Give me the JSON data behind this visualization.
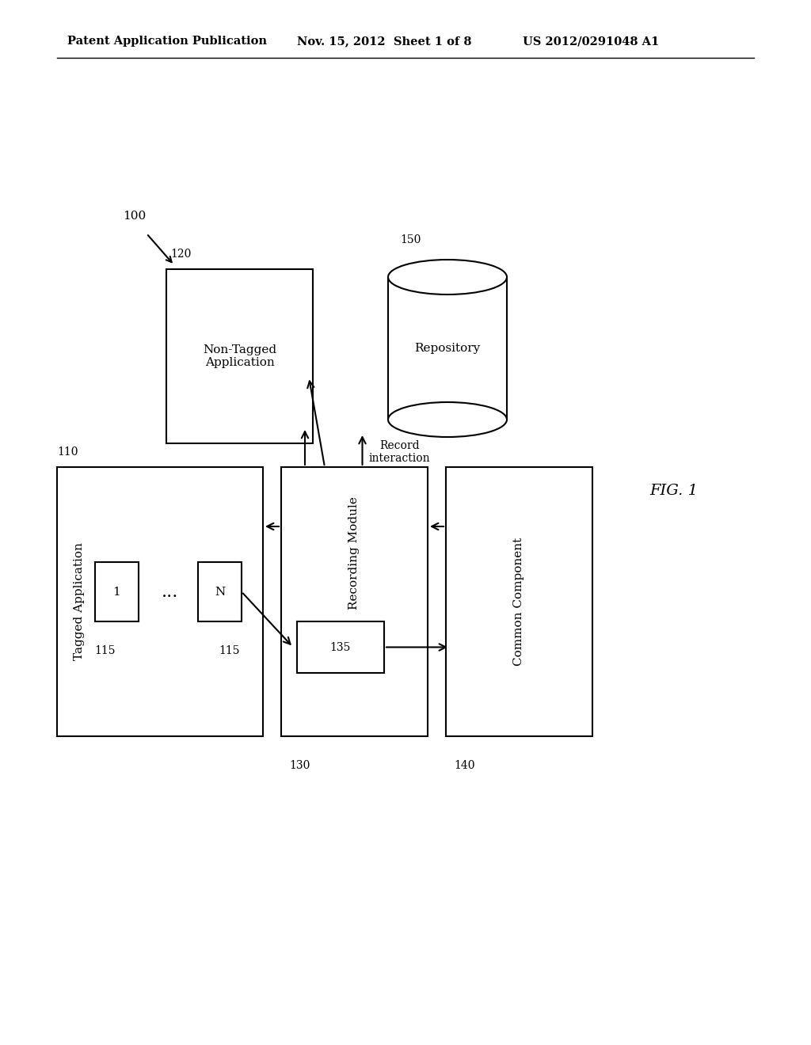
{
  "bg_color": "#ffffff",
  "header_left": "Patent Application Publication",
  "header_mid": "Nov. 15, 2012  Sheet 1 of 8",
  "header_right": "US 2012/0291048 A1",
  "fig_label": "FIG. 1",
  "label_100": "100",
  "label_110": "110",
  "label_120": "120",
  "label_130": "130",
  "label_135": "135",
  "label_140": "140",
  "label_150": "150",
  "label_115a": "115",
  "label_115b": "115",
  "box_120_text": "Non-Tagged\nApplication",
  "box_110_text": "Tagged Application",
  "box_130_text": "Recording Module",
  "box_135_text": "135",
  "box_140_text": "Common Component",
  "cylinder_text": "Repository",
  "record_text": "Record\ninteraction",
  "node1_text": "1",
  "nodeN_text": "N",
  "dots_text": "..."
}
